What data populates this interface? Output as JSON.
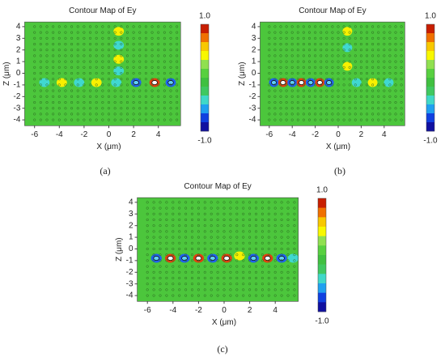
{
  "panels": [
    {
      "title": "Contour Map of Ey",
      "x_label": "X (μm)",
      "y_label": "Z (μm)",
      "xticks": [
        -6,
        -4,
        -2,
        0,
        2,
        4
      ],
      "yticks": [
        4,
        3,
        2,
        1,
        0,
        -1,
        -2,
        -3,
        -4
      ],
      "colorbar_max": "1.0",
      "colorbar_min": "-1.0",
      "label": "(a)"
    },
    {
      "title": "Contour Map of Ey",
      "x_label": "X (μm)",
      "y_label": "Z (μm)",
      "xticks": [
        -6,
        -4,
        -2,
        0,
        2,
        4
      ],
      "yticks": [
        4,
        3,
        2,
        1,
        0,
        -1,
        -2,
        -3,
        -4
      ],
      "colorbar_max": "1.0",
      "colorbar_min": "-1.0",
      "label": "(b)"
    },
    {
      "title": "Contour Map of Ey",
      "x_label": "X (μm)",
      "y_label": "Z (μm)",
      "xticks": [
        -6,
        -4,
        -2,
        0,
        2,
        4
      ],
      "yticks": [
        4,
        3,
        2,
        1,
        0,
        -1,
        -2,
        -3,
        -4
      ],
      "colorbar_max": "1.0",
      "colorbar_min": "-1.0",
      "label": "(c)"
    }
  ]
}
